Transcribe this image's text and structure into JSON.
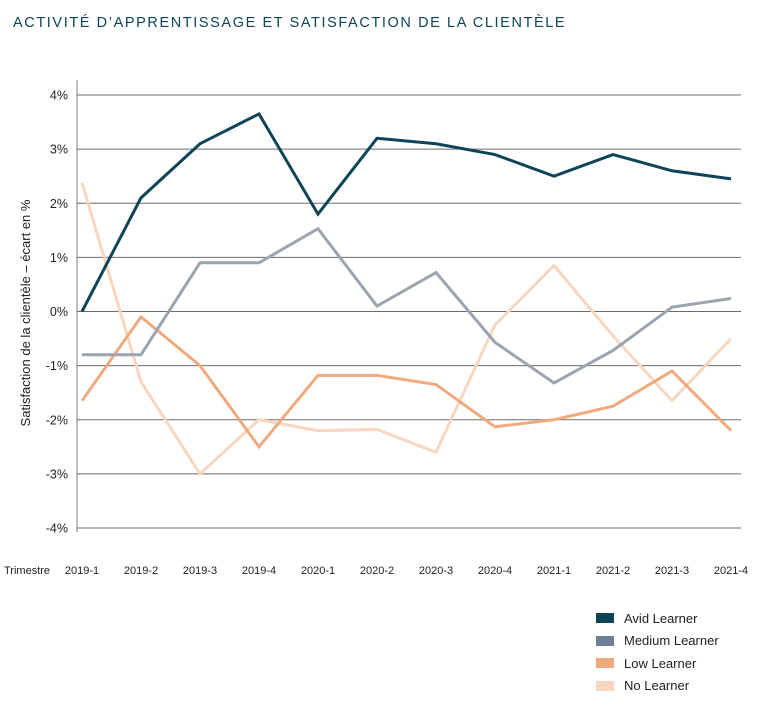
{
  "chart_data": {
    "type": "line",
    "title": "ACTIVITÉ D’APPRENTISSAGE ET SATISFACTION DE LA CLIENTÈLE",
    "xlabel": "Trimestre",
    "ylabel": "Satisfaction de la clientèle – écart en %",
    "categories": [
      "2019-1",
      "2019-2",
      "2019-3",
      "2019-4",
      "2020-1",
      "2020-2",
      "2020-3",
      "2020-4",
      "2021-1",
      "2021-2",
      "2021-3",
      "2021-4"
    ],
    "ylim": [
      -4,
      4
    ],
    "yticks": [
      "-4%",
      "-3%",
      "-2%",
      "-1%",
      "0%",
      "1%",
      "2%",
      "3%",
      "4%"
    ],
    "grid": true,
    "legend": "bottom-right",
    "series": [
      {
        "name": "Avid Learner",
        "color": "#0e4458",
        "line_color": "#0e4458",
        "values": [
          0,
          2.1,
          3.1,
          3.65,
          1.8,
          3.2,
          3.1,
          2.9,
          2.5,
          2.9,
          2.6,
          2.45
        ]
      },
      {
        "name": "Medium Learner",
        "color": "#6e8094",
        "line_color": "#9ba4b1",
        "values": [
          -0.8,
          -0.8,
          0.9,
          0.9,
          1.53,
          0.1,
          0.72,
          -0.57,
          -1.32,
          -0.72,
          0.08,
          0.24
        ]
      },
      {
        "name": "Low Learner",
        "color": "#f0a97c",
        "line_color": "#f0aa7e",
        "values": [
          -1.65,
          -0.1,
          -1.0,
          -2.5,
          -1.18,
          -1.18,
          -1.35,
          -2.13,
          -2.0,
          -1.75,
          -1.1,
          -2.2
        ]
      },
      {
        "name": "No Learner",
        "color": "#f8d6bf",
        "line_color": "#f8d6bf",
        "values": [
          2.38,
          -1.3,
          -3.0,
          -2.0,
          -2.2,
          -2.18,
          -2.6,
          -0.25,
          0.85,
          -0.45,
          -1.65,
          -0.5
        ]
      }
    ]
  }
}
